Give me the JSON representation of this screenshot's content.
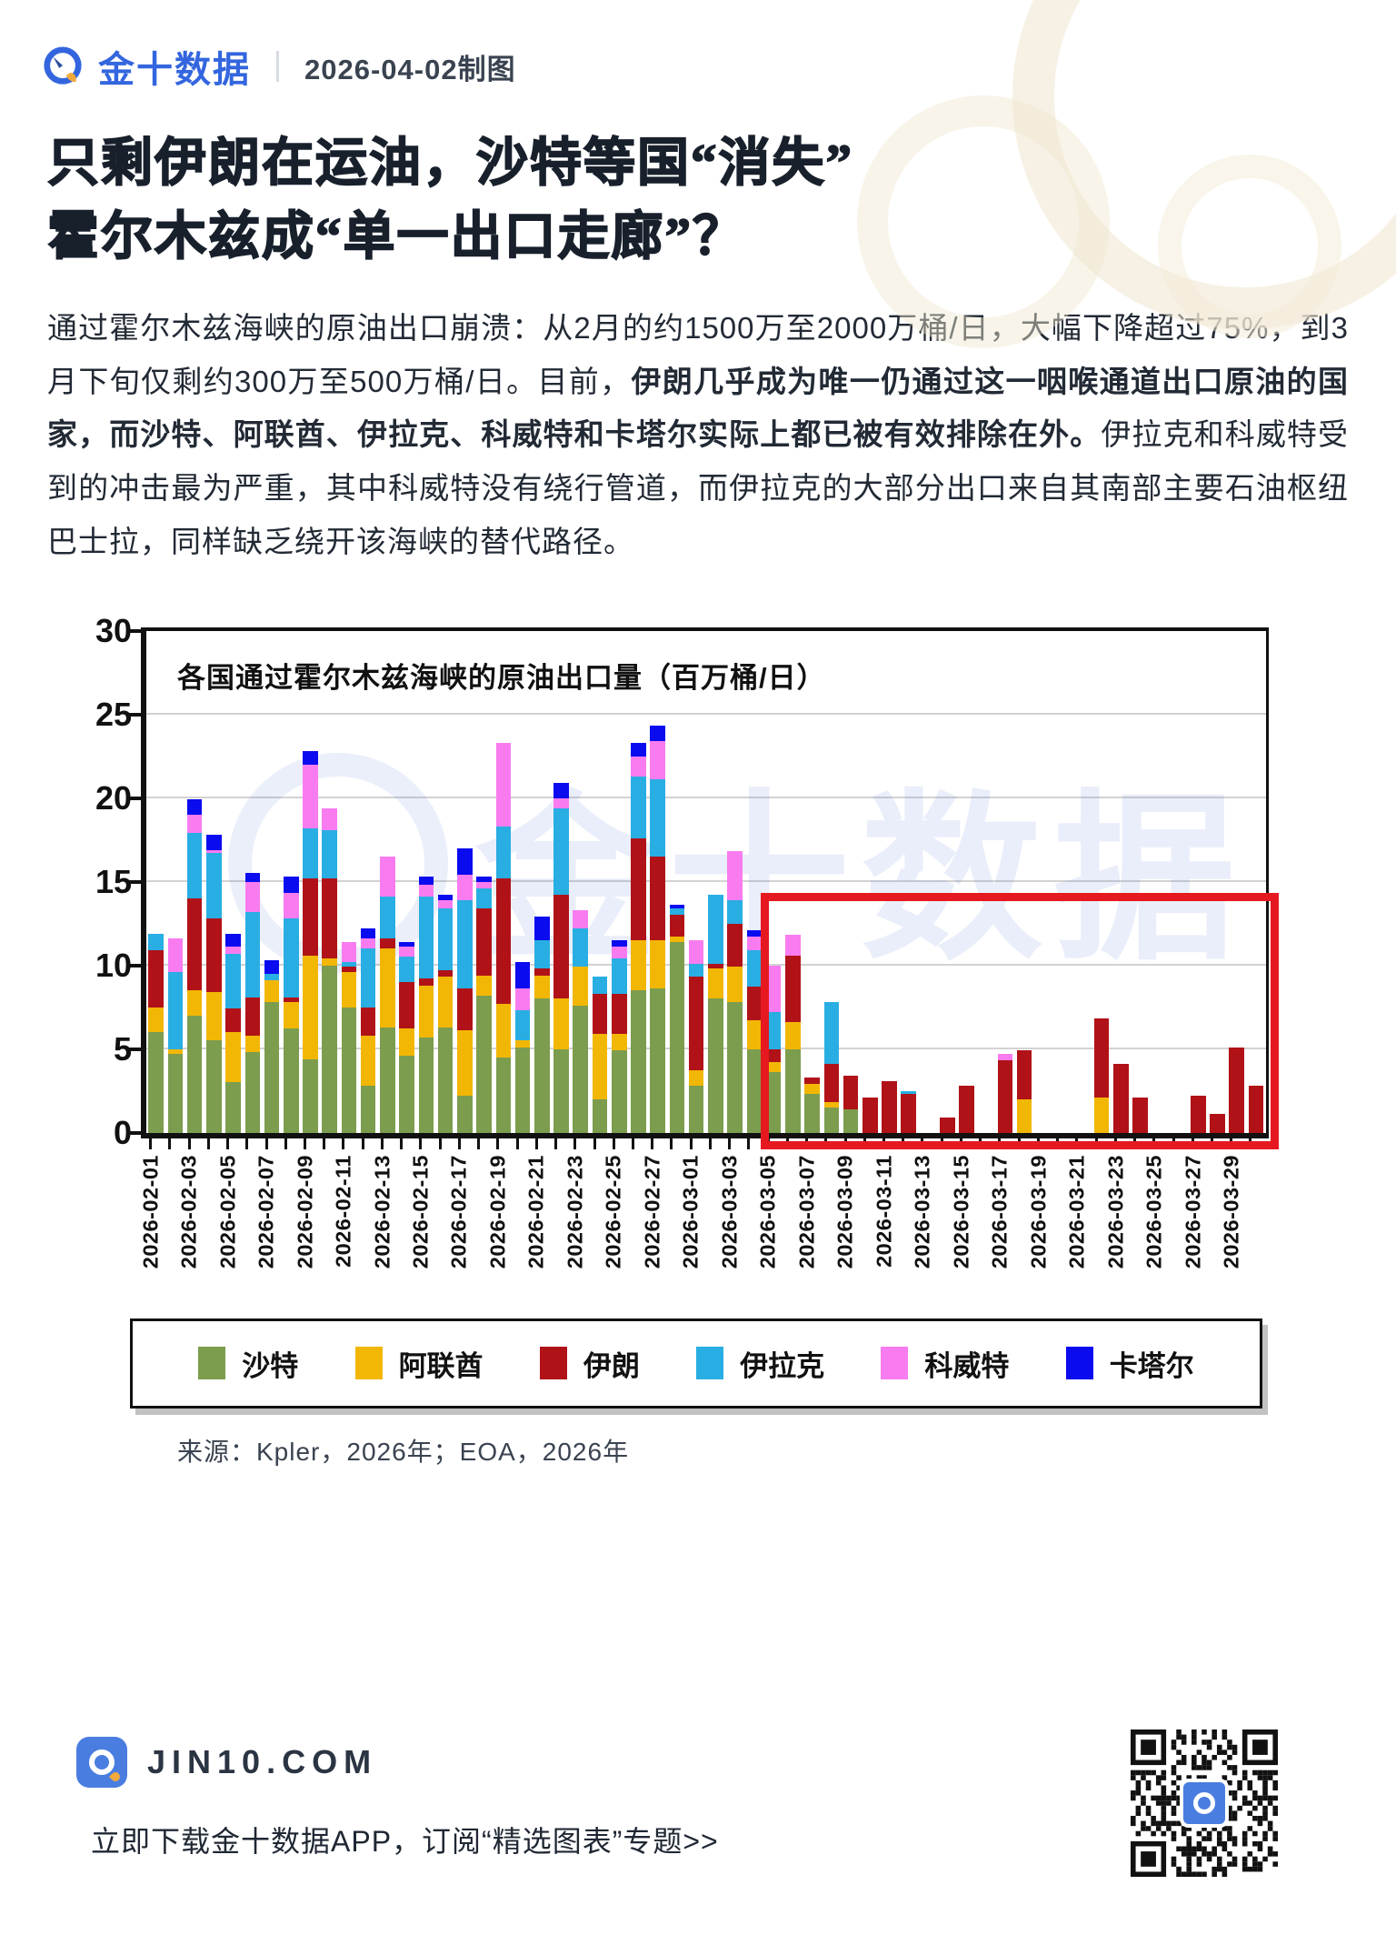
{
  "header": {
    "brand": "金十数据",
    "date_note": "2026-04-02制图",
    "brand_color": "#3366DE"
  },
  "title": {
    "line1": "只剩伊朗在运油，沙特等国“消失”",
    "line2": "霍尔木兹成“单一出口走廊”？"
  },
  "body": {
    "normal1": "通过霍尔木兹海峡的原油出口崩溃：从2月的约1500万至2000万桶/日，大幅下降超过75%，到3月下旬仅剩约300万至500万桶/日。目前，",
    "bold": "伊朗几乎成为唯一仍通过这一咽喉通道出口原油的国家，而沙特、阿联酋、伊拉克、科威特和卡塔尔实际上都已被有效排除在外。",
    "normal2": "伊拉克和科威特受到的冲击最为严重，其中科威特没有绕行管道，而伊拉克的大部分出口来自其南部主要石油枢纽巴士拉，同样缺乏绕开该海峡的替代路径。"
  },
  "chart_data": {
    "type": "bar",
    "stacked": true,
    "title": "各国通过霍尔木兹海峡的原油出口量（百万桶/日）",
    "xlabel": "",
    "ylabel": "",
    "ylim": [
      0,
      30
    ],
    "yticks": [
      0,
      5,
      10,
      15,
      20,
      25,
      30
    ],
    "grid": "horizontal",
    "legend_position": "bottom",
    "x_tick_every": 2,
    "x": [
      "2026-02-01",
      "2026-02-02",
      "2026-02-03",
      "2026-02-04",
      "2026-02-05",
      "2026-02-06",
      "2026-02-07",
      "2026-02-08",
      "2026-02-09",
      "2026-02-10",
      "2026-02-11",
      "2026-02-12",
      "2026-02-13",
      "2026-02-14",
      "2026-02-15",
      "2026-02-16",
      "2026-02-17",
      "2026-02-18",
      "2026-02-19",
      "2026-02-20",
      "2026-02-21",
      "2026-02-22",
      "2026-02-23",
      "2026-02-24",
      "2026-02-25",
      "2026-02-26",
      "2026-02-27",
      "2026-02-28",
      "2026-03-01",
      "2026-03-02",
      "2026-03-03",
      "2026-03-04",
      "2026-03-05",
      "2026-03-06",
      "2026-03-07",
      "2026-03-08",
      "2026-03-09",
      "2026-03-10",
      "2026-03-11",
      "2026-03-12",
      "2026-03-13",
      "2026-03-14",
      "2026-03-15",
      "2026-03-16",
      "2026-03-17",
      "2026-03-18",
      "2026-03-19",
      "2026-03-20",
      "2026-03-21",
      "2026-03-22",
      "2026-03-23",
      "2026-03-24",
      "2026-03-25",
      "2026-03-26",
      "2026-03-27",
      "2026-03-28",
      "2026-03-29",
      "2026-03-30"
    ],
    "series": [
      {
        "name": "沙特",
        "key": "saudi",
        "color": "#7C9D4E",
        "values": [
          6.0,
          4.7,
          7.0,
          5.5,
          3.0,
          4.8,
          7.8,
          6.2,
          4.4,
          10.0,
          7.5,
          2.8,
          6.3,
          4.6,
          5.7,
          6.3,
          2.2,
          8.2,
          4.5,
          5.1,
          8.0,
          5.0,
          7.6,
          2.0,
          4.9,
          8.5,
          8.6,
          11.4,
          2.8,
          8.0,
          7.8,
          5.0,
          3.6,
          5.0,
          2.3,
          1.5,
          1.4,
          0,
          0,
          0,
          0,
          0,
          0,
          0,
          0,
          0,
          0,
          0,
          0,
          0,
          0,
          0,
          0,
          0,
          0,
          0,
          0,
          0
        ]
      },
      {
        "name": "阿联酋",
        "key": "uae",
        "color": "#F2B705",
        "values": [
          1.5,
          0.3,
          1.5,
          2.9,
          3.0,
          1.0,
          1.3,
          1.6,
          6.2,
          0.4,
          2.1,
          3.0,
          4.7,
          1.6,
          3.1,
          3.0,
          3.9,
          1.2,
          3.2,
          0.4,
          1.4,
          3.0,
          2.3,
          3.9,
          1.0,
          3.0,
          2.9,
          0.3,
          0.9,
          1.8,
          2.1,
          1.7,
          0.6,
          1.6,
          0.6,
          0.3,
          0,
          0,
          0,
          0,
          0,
          0,
          0,
          0,
          0,
          2.0,
          0,
          0,
          0,
          2.1,
          0,
          0,
          0,
          0,
          0,
          0,
          0,
          0
        ]
      },
      {
        "name": "伊朗",
        "key": "iran",
        "color": "#B01218",
        "values": [
          3.4,
          0,
          5.5,
          4.4,
          1.4,
          2.3,
          0,
          0.3,
          4.6,
          4.8,
          0.3,
          1.7,
          0.6,
          2.8,
          0.4,
          0.4,
          2.5,
          4.0,
          7.5,
          0,
          0.4,
          6.2,
          0,
          2.4,
          2.4,
          6.1,
          5.0,
          1.3,
          5.6,
          0.3,
          2.6,
          2.0,
          0.8,
          4.0,
          0.4,
          2.3,
          2.0,
          2.1,
          3.1,
          2.3,
          0,
          0.9,
          2.8,
          0,
          4.3,
          2.9,
          0,
          0,
          0,
          4.7,
          4.1,
          2.1,
          0,
          0,
          2.2,
          1.1,
          5.1,
          2.8
        ]
      },
      {
        "name": "伊拉克",
        "key": "iraq",
        "color": "#29AEE3",
        "values": [
          1.0,
          4.6,
          3.9,
          3.9,
          3.3,
          5.1,
          0.4,
          4.7,
          3.0,
          2.9,
          0.3,
          3.5,
          2.5,
          1.5,
          4.9,
          3.7,
          5.3,
          1.2,
          3.1,
          1.8,
          1.7,
          5.2,
          2.3,
          1.0,
          2.1,
          3.7,
          4.6,
          0.4,
          0.8,
          4.1,
          1.4,
          2.2,
          2.2,
          0,
          0,
          3.7,
          0,
          0,
          0,
          0.2,
          0,
          0,
          0,
          0,
          0,
          0,
          0,
          0,
          0,
          0,
          0,
          0,
          0,
          0,
          0,
          0,
          0,
          0
        ]
      },
      {
        "name": "科威特",
        "key": "kuwait",
        "color": "#F87CF0",
        "values": [
          0,
          2.0,
          1.1,
          0.2,
          0.4,
          1.8,
          0,
          1.5,
          3.8,
          1.3,
          1.2,
          0.6,
          2.4,
          0.6,
          0.7,
          0.5,
          1.5,
          0.4,
          5.0,
          1.3,
          0,
          0.6,
          1.1,
          0,
          0.7,
          1.2,
          2.3,
          0,
          1.4,
          0,
          2.9,
          0.8,
          2.8,
          1.2,
          0,
          0,
          0,
          0,
          0,
          0,
          0,
          0,
          0,
          0,
          0.4,
          0,
          0,
          0,
          0,
          0,
          0,
          0,
          0,
          0,
          0,
          0,
          0,
          0
        ]
      },
      {
        "name": "卡塔尔",
        "key": "qatar",
        "color": "#0B0BEF",
        "values": [
          0,
          0,
          0.9,
          0.9,
          0.8,
          0.5,
          0.8,
          1.0,
          0.8,
          0,
          0,
          0.6,
          0,
          0.3,
          0.5,
          0.3,
          1.6,
          0.3,
          0,
          1.6,
          1.4,
          0.9,
          0,
          0,
          0.4,
          0.8,
          0.9,
          0.2,
          0,
          0,
          0,
          0.4,
          0,
          0,
          0,
          0,
          0,
          0,
          0,
          0,
          0,
          0,
          0,
          0,
          0,
          0,
          0,
          0,
          0,
          0,
          0,
          0,
          0,
          0,
          0,
          0,
          0,
          0
        ]
      }
    ],
    "highlight_box": {
      "start_date": "2026-03-05",
      "end_date": "2026-03-30",
      "start_index": 32,
      "top_value": 14.3,
      "color": "#E5191F"
    }
  },
  "source": {
    "text": "来源：Kpler，2026年；EOA，2026年"
  },
  "footer": {
    "site": "JIN10.COM",
    "tagline": "立即下载金十数据APP，订阅“精选图表”专题>>"
  }
}
